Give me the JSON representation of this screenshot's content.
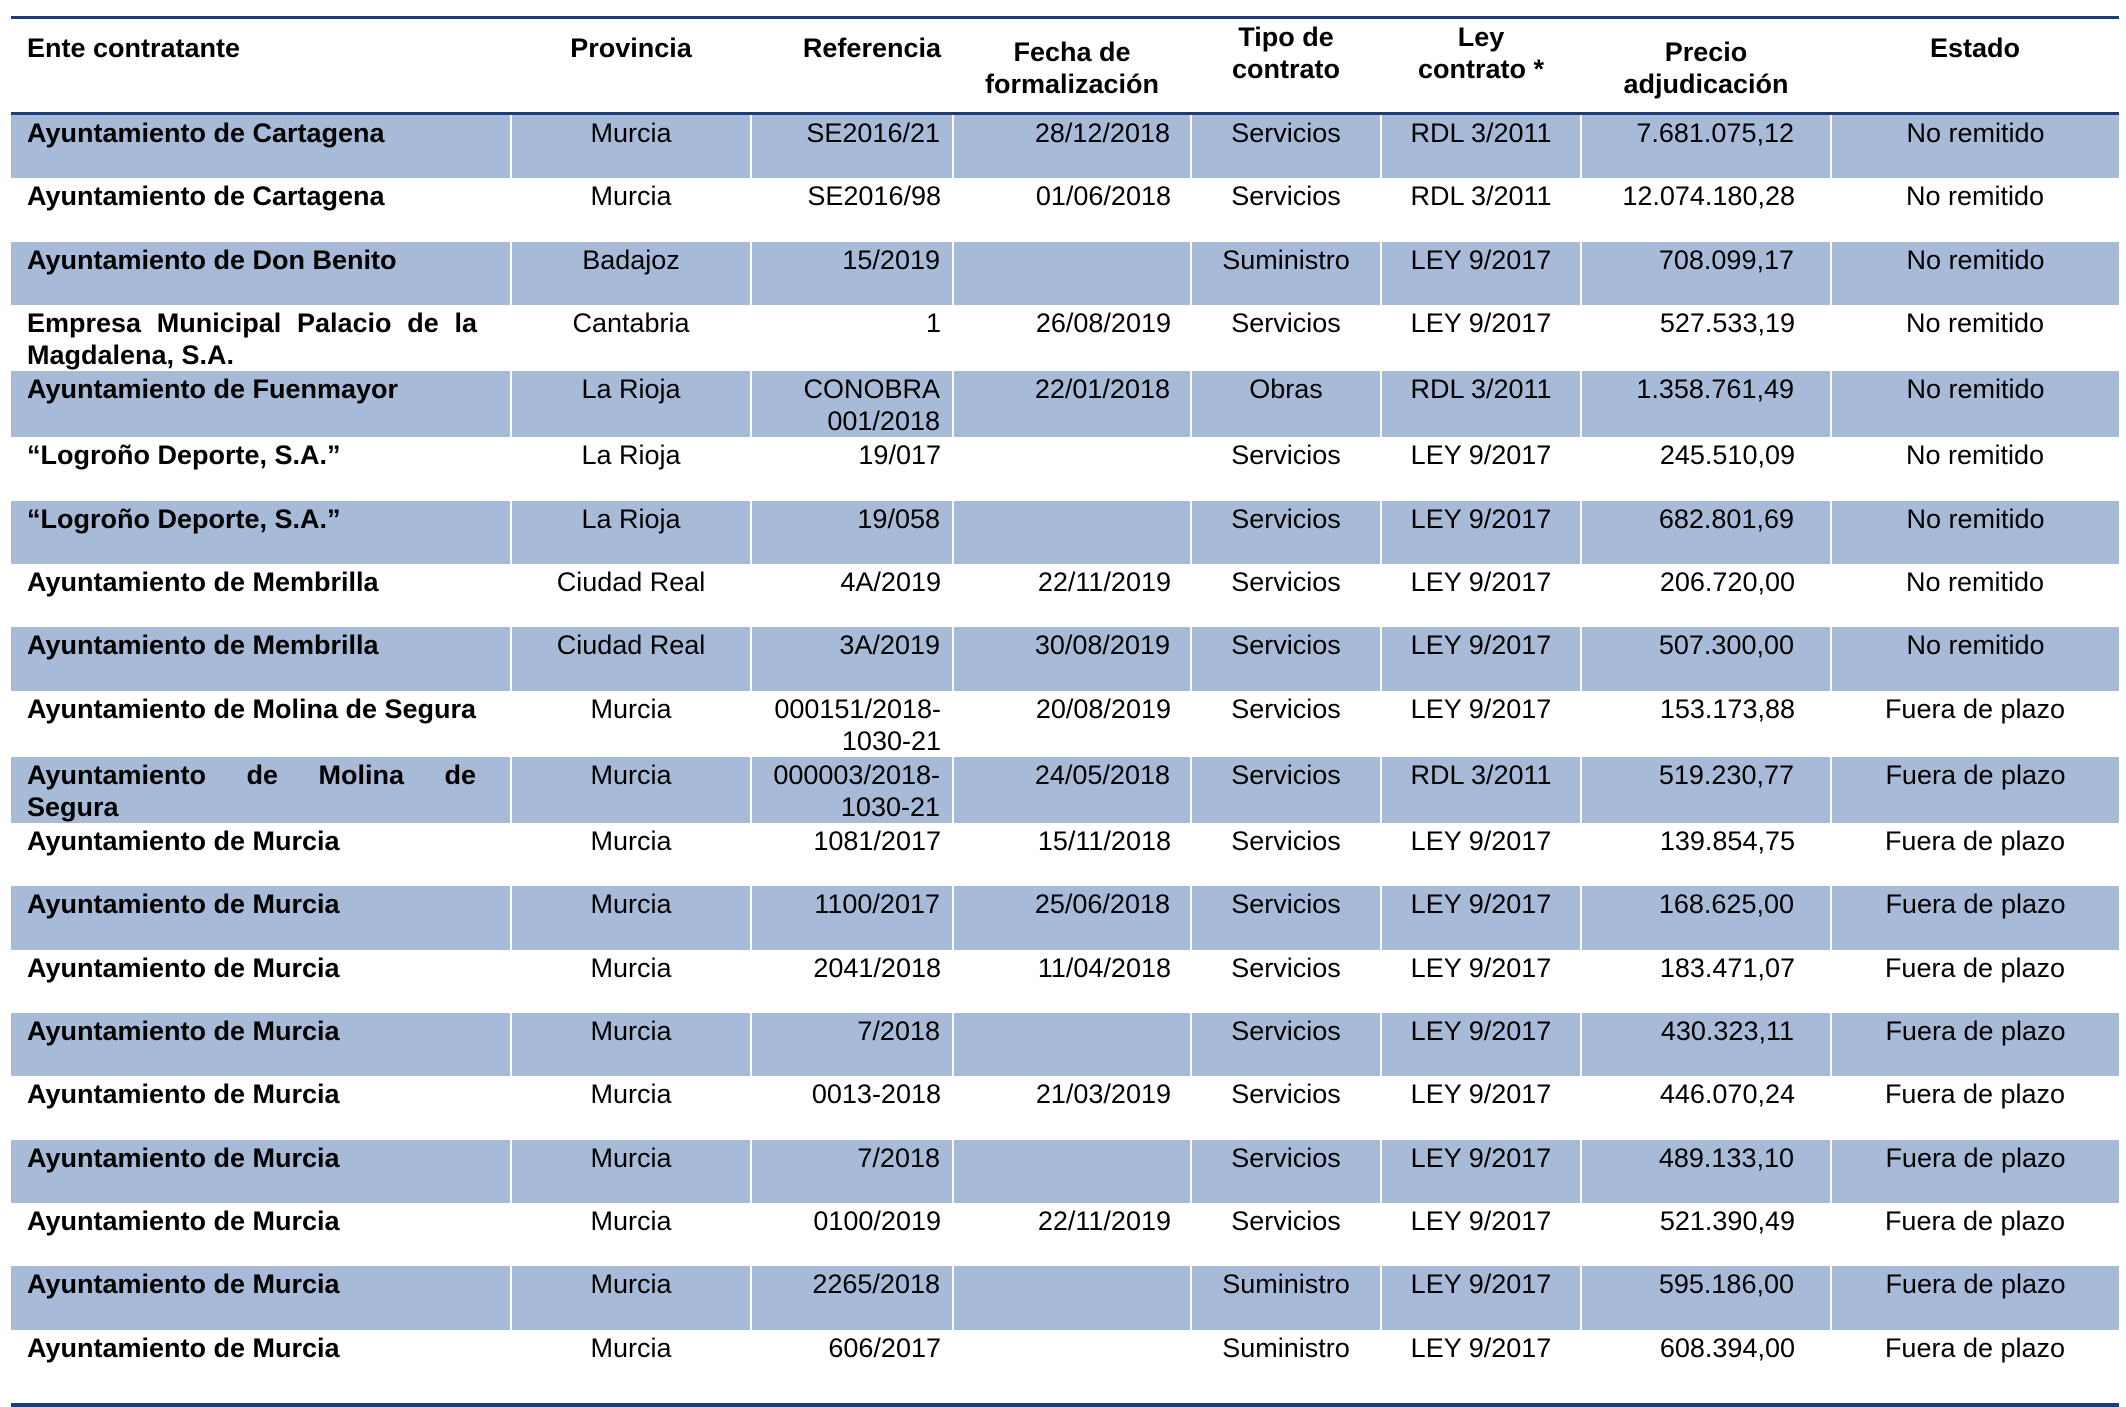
{
  "headers": {
    "ente": "Ente contratante",
    "provincia": "Provincia",
    "referencia": "Referencia",
    "fecha_line1": "Fecha de",
    "fecha_line2": "formalización",
    "tipo_line1": "Tipo de",
    "tipo_line2": "contrato",
    "ley_line1": "Ley",
    "ley_line2": "contrato *",
    "precio_line1": "Precio",
    "precio_line2": "adjudicación",
    "estado": "Estado"
  },
  "rows": [
    {
      "ente": "Ayuntamiento de Cartagena",
      "provincia": "Murcia",
      "referencia": "SE2016/21",
      "fecha": "28/12/2018",
      "tipo": "Servicios",
      "ley": "RDL 3/2011",
      "precio": "7.681.075,12",
      "estado": "No remitido"
    },
    {
      "ente": "Ayuntamiento de Cartagena",
      "provincia": "Murcia",
      "referencia": "SE2016/98",
      "fecha": "01/06/2018",
      "tipo": "Servicios",
      "ley": "RDL 3/2011",
      "precio": "12.074.180,28",
      "estado": "No remitido"
    },
    {
      "ente": "Ayuntamiento de Don Benito",
      "provincia": "Badajoz",
      "referencia": "15/2019",
      "fecha": "",
      "tipo": "Suministro",
      "ley": "LEY 9/2017",
      "precio": "708.099,17",
      "estado": "No remitido"
    },
    {
      "ente": "Empresa Municipal Palacio de la Magdalena, S.A.",
      "provincia": "Cantabria",
      "referencia": "1",
      "fecha": "26/08/2019",
      "tipo": "Servicios",
      "ley": "LEY 9/2017",
      "precio": "527.533,19",
      "estado": "No remitido"
    },
    {
      "ente": "Ayuntamiento de Fuenmayor",
      "provincia": "La Rioja",
      "referencia": "CONOBRA 001/2018",
      "fecha": "22/01/2018",
      "tipo": "Obras",
      "ley": "RDL 3/2011",
      "precio": "1.358.761,49",
      "estado": "No remitido"
    },
    {
      "ente": "“Logroño Deporte, S.A.”",
      "provincia": "La Rioja",
      "referencia": "19/017",
      "fecha": "",
      "tipo": "Servicios",
      "ley": "LEY 9/2017",
      "precio": "245.510,09",
      "estado": "No remitido"
    },
    {
      "ente": "“Logroño Deporte, S.A.”",
      "provincia": "La Rioja",
      "referencia": "19/058",
      "fecha": "",
      "tipo": "Servicios",
      "ley": "LEY 9/2017",
      "precio": "682.801,69",
      "estado": "No remitido"
    },
    {
      "ente": "Ayuntamiento de Membrilla",
      "provincia": "Ciudad Real",
      "referencia": "4A/2019",
      "fecha": "22/11/2019",
      "tipo": "Servicios",
      "ley": "LEY 9/2017",
      "precio": "206.720,00",
      "estado": "No remitido"
    },
    {
      "ente": "Ayuntamiento de Membrilla",
      "provincia": "Ciudad Real",
      "referencia": "3A/2019",
      "fecha": "30/08/2019",
      "tipo": "Servicios",
      "ley": "LEY 9/2017",
      "precio": "507.300,00",
      "estado": "No remitido"
    },
    {
      "ente": "Ayuntamiento de Molina de Segura",
      "provincia": "Murcia",
      "referencia": "000151/2018-1030-21",
      "fecha": "20/08/2019",
      "tipo": "Servicios",
      "ley": "LEY 9/2017",
      "precio": "153.173,88",
      "estado": "Fuera de plazo"
    },
    {
      "ente": "Ayuntamiento de Molina de Segura",
      "provincia": "Murcia",
      "referencia": "000003/2018-1030-21",
      "fecha": "24/05/2018",
      "tipo": "Servicios",
      "ley": "RDL 3/2011",
      "precio": "519.230,77",
      "estado": "Fuera de plazo"
    },
    {
      "ente": "Ayuntamiento de Murcia",
      "provincia": "Murcia",
      "referencia": "1081/2017",
      "fecha": "15/11/2018",
      "tipo": "Servicios",
      "ley": "LEY 9/2017",
      "precio": "139.854,75",
      "estado": "Fuera de plazo"
    },
    {
      "ente": "Ayuntamiento de Murcia",
      "provincia": "Murcia",
      "referencia": "1100/2017",
      "fecha": "25/06/2018",
      "tipo": "Servicios",
      "ley": "LEY 9/2017",
      "precio": "168.625,00",
      "estado": "Fuera de plazo"
    },
    {
      "ente": "Ayuntamiento de Murcia",
      "provincia": "Murcia",
      "referencia": "2041/2018",
      "fecha": "11/04/2018",
      "tipo": "Servicios",
      "ley": "LEY 9/2017",
      "precio": "183.471,07",
      "estado": "Fuera de plazo"
    },
    {
      "ente": "Ayuntamiento de Murcia",
      "provincia": "Murcia",
      "referencia": "7/2018",
      "fecha": "",
      "tipo": "Servicios",
      "ley": "LEY 9/2017",
      "precio": "430.323,11",
      "estado": "Fuera de plazo"
    },
    {
      "ente": "Ayuntamiento de Murcia",
      "provincia": "Murcia",
      "referencia": "0013-2018",
      "fecha": "21/03/2019",
      "tipo": "Servicios",
      "ley": "LEY 9/2017",
      "precio": "446.070,24",
      "estado": "Fuera de plazo"
    },
    {
      "ente": "Ayuntamiento de Murcia",
      "provincia": "Murcia",
      "referencia": "7/2018",
      "fecha": "",
      "tipo": "Servicios",
      "ley": "LEY 9/2017",
      "precio": "489.133,10",
      "estado": "Fuera de plazo"
    },
    {
      "ente": "Ayuntamiento de Murcia",
      "provincia": "Murcia",
      "referencia": "0100/2019",
      "fecha": "22/11/2019",
      "tipo": "Servicios",
      "ley": "LEY 9/2017",
      "precio": "521.390,49",
      "estado": "Fuera de plazo"
    },
    {
      "ente": "Ayuntamiento de Murcia",
      "provincia": "Murcia",
      "referencia": "2265/2018",
      "fecha": "",
      "tipo": "Suministro",
      "ley": "LEY 9/2017",
      "precio": "595.186,00",
      "estado": "Fuera de plazo"
    },
    {
      "ente": "Ayuntamiento de Murcia",
      "provincia": "Murcia",
      "referencia": "606/2017",
      "fecha": "",
      "tipo": "Suministro",
      "ley": "LEY 9/2017",
      "precio": "608.394,00",
      "estado": "Fuera de plazo"
    }
  ],
  "colors": {
    "rule": "#1f3b78",
    "shaded_row": "#a7bad8"
  }
}
